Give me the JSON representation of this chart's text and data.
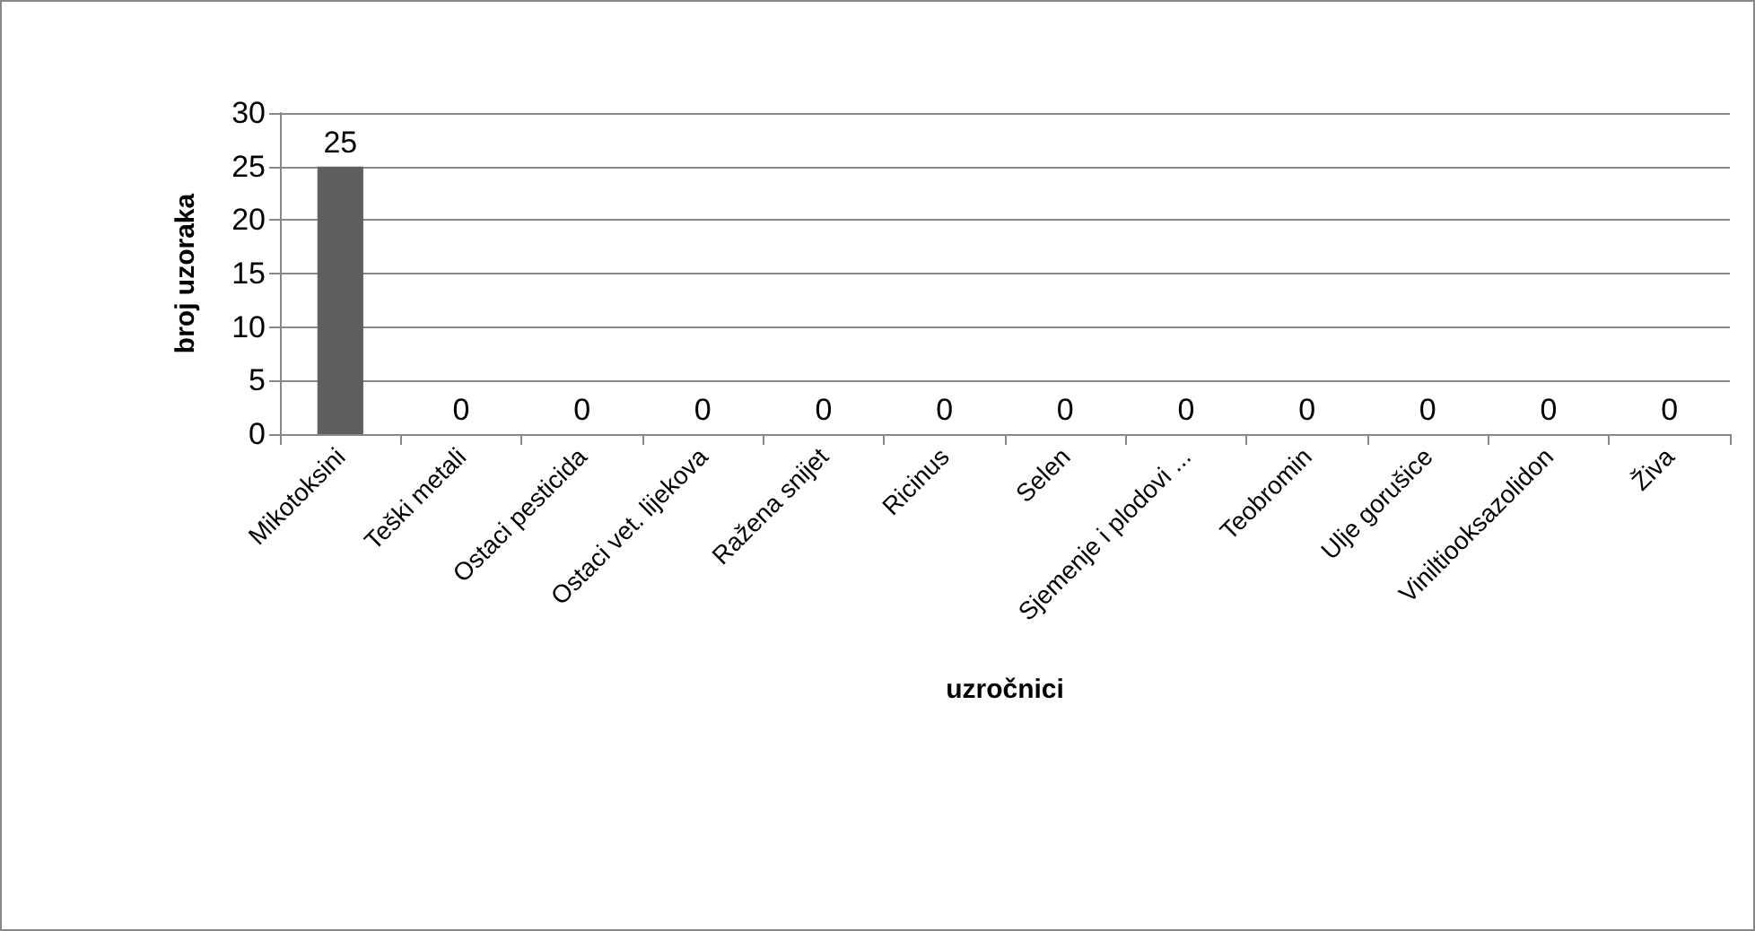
{
  "chart_data": {
    "type": "bar",
    "xlabel": "uzročnici",
    "ylabel": "broj uzoraka",
    "categories": [
      "Mikotoksini",
      "Teški metali",
      "Ostaci pesticida",
      "Ostaci vet. lijekova",
      "Ražena snijet",
      "Ricinus",
      "Selen",
      "Sjemenje i plodovi ...",
      "Teobromin",
      "Ulje gorušice",
      "Viniltiooksazolidon",
      "Živa"
    ],
    "values": [
      25,
      0,
      0,
      0,
      0,
      0,
      0,
      0,
      0,
      0,
      0,
      0
    ],
    "color": "#5f5f5f",
    "ylim": [
      0,
      30
    ],
    "yticks": [
      0,
      5,
      10,
      15,
      20,
      25,
      30
    ],
    "grid": "y",
    "data_labels": true
  }
}
